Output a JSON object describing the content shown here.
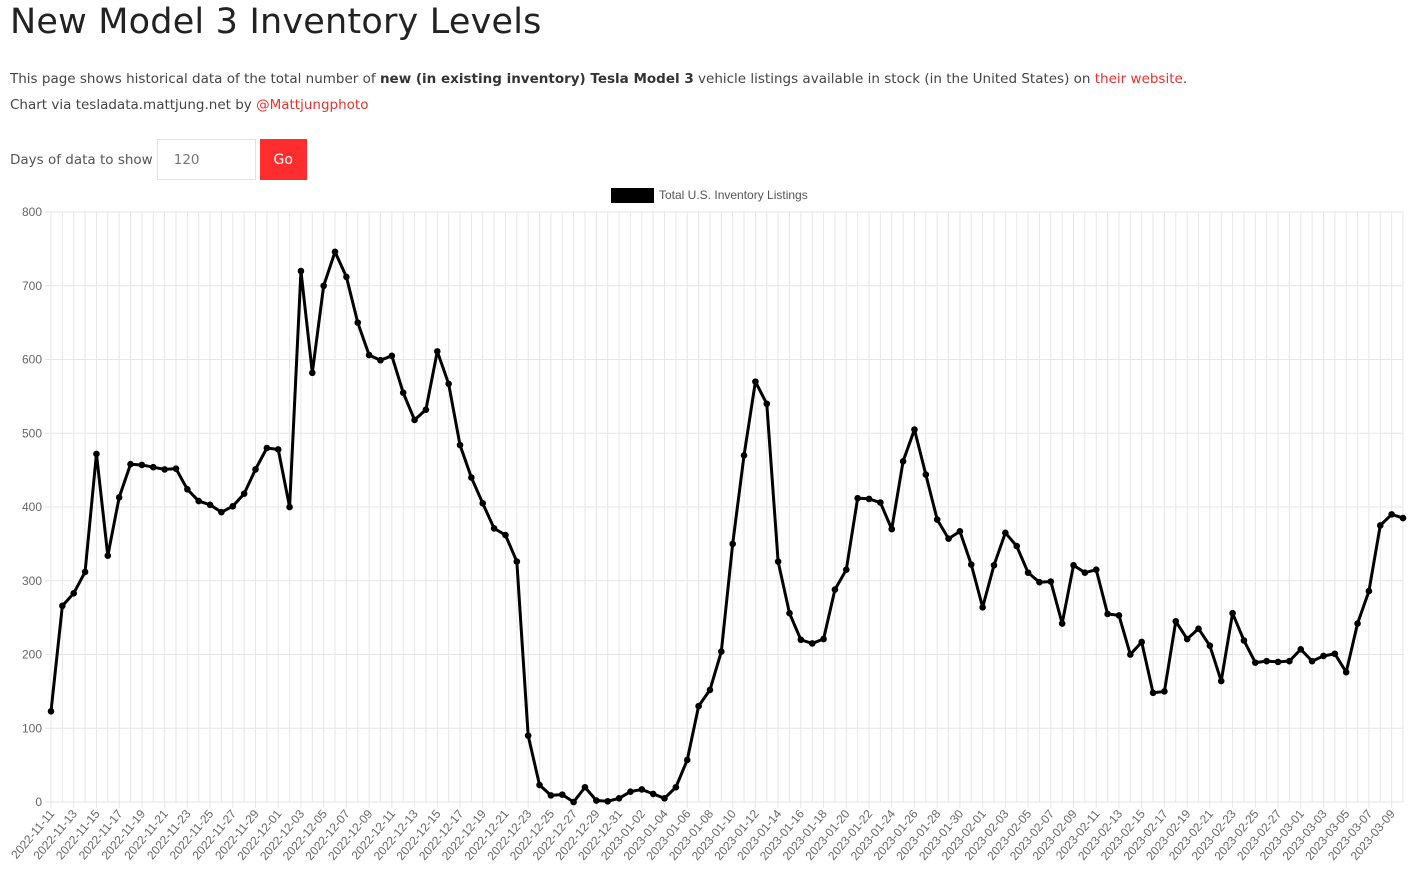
{
  "page": {
    "title": "New Model 3 Inventory Levels",
    "desc_prefix": "This page shows historical data of the total number of ",
    "desc_bold": "new (in existing inventory) Tesla Model 3",
    "desc_middle": " vehicle listings available in stock (in the United States) on ",
    "desc_link": "their website",
    "desc_suffix": ".",
    "credit_prefix": "Chart via tesladata.mattjung.net by ",
    "credit_link": "@Mattjungphoto"
  },
  "controls": {
    "days_label": "Days of data to show",
    "days_value": "120",
    "go_label": "Go"
  },
  "colors": {
    "accent": "#ff2d2d",
    "link": "#e8322c",
    "series": "#000000",
    "grid": "#e6e6e6"
  },
  "chart_data": {
    "type": "line",
    "title": "",
    "xlabel": "",
    "ylabel": "",
    "ylim": [
      0,
      800
    ],
    "yticks": [
      0,
      100,
      200,
      300,
      400,
      500,
      600,
      700,
      800
    ],
    "grid": true,
    "legend_position": "top-center",
    "start_date": "2022-11-11",
    "xtick_labels": [
      "2022-11-11",
      "2022-11-13",
      "2022-11-15",
      "2022-11-17",
      "2022-11-19",
      "2022-11-21",
      "2022-11-23",
      "2022-11-25",
      "2022-11-27",
      "2022-11-29",
      "2022-12-01",
      "2022-12-03",
      "2022-12-05",
      "2022-12-07",
      "2022-12-09",
      "2022-12-11",
      "2022-12-13",
      "2022-12-15",
      "2022-12-17",
      "2022-12-19",
      "2022-12-21",
      "2022-12-23",
      "2022-12-25",
      "2022-12-27",
      "2022-12-29",
      "2022-12-31",
      "2023-01-02",
      "2023-01-04",
      "2023-01-06",
      "2023-01-08",
      "2023-01-10",
      "2023-01-12",
      "2023-01-14",
      "2023-01-16",
      "2023-01-18",
      "2023-01-20",
      "2023-01-22",
      "2023-01-24",
      "2023-01-26",
      "2023-01-28",
      "2023-01-30",
      "2023-02-01",
      "2023-02-03",
      "2023-02-05",
      "2023-02-07",
      "2023-02-09",
      "2023-02-11",
      "2023-02-13",
      "2023-02-15",
      "2023-02-17",
      "2023-02-19",
      "2023-02-21",
      "2023-02-23",
      "2023-02-25",
      "2023-02-27",
      "2023-03-01",
      "2023-03-03",
      "2023-03-05",
      "2023-03-07",
      "2023-03-09"
    ],
    "series": [
      {
        "name": "Total U.S. Inventory Listings",
        "color": "#000000",
        "values": [
          123,
          266,
          283,
          312,
          472,
          334,
          413,
          458,
          457,
          454,
          451,
          452,
          424,
          408,
          403,
          393,
          401,
          418,
          451,
          480,
          478,
          400,
          720,
          582,
          700,
          746,
          712,
          650,
          606,
          599,
          605,
          555,
          518,
          532,
          611,
          567,
          484,
          440,
          405,
          371,
          362,
          326,
          90,
          23,
          9,
          10,
          0,
          20,
          2,
          1,
          5,
          14,
          17,
          11,
          5,
          20,
          57,
          130,
          152,
          204,
          350,
          470,
          570,
          540,
          326,
          256,
          220,
          215,
          221,
          288,
          315,
          412,
          411,
          406,
          370,
          462,
          505,
          444,
          383,
          357,
          367,
          322,
          264,
          321,
          365,
          347,
          311,
          298,
          299,
          242,
          321,
          311,
          315,
          255,
          253,
          200,
          217,
          148,
          150,
          245,
          221,
          235,
          212,
          164,
          256,
          219,
          189,
          191,
          190,
          191,
          207,
          191,
          198,
          201,
          176,
          242,
          286,
          375,
          390,
          385
        ]
      }
    ]
  }
}
